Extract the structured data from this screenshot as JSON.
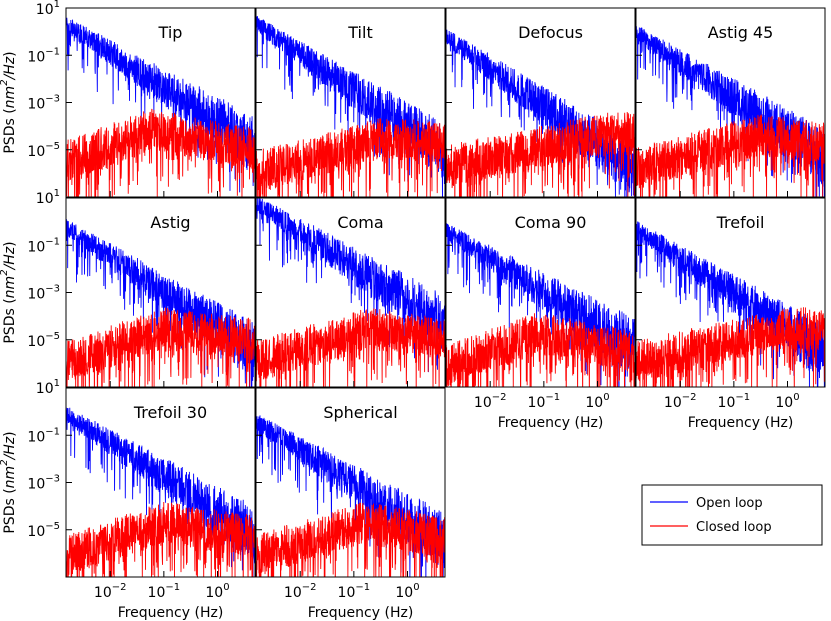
{
  "chart_data": {
    "type": "line",
    "scale": "log-log",
    "xlabel": "Frequency (Hz)",
    "ylabel": "PSDs (nm²/Hz)",
    "ylim": [
      1e-07,
      10
    ],
    "xlim": [
      0.0015,
      5
    ],
    "xticks": [
      0.01,
      0.1,
      1
    ],
    "yticks": [
      10,
      0.1,
      0.001,
      1e-05
    ],
    "ytick_labels": [
      {
        "base": "10",
        "exp": "1"
      },
      {
        "base": "10",
        "exp": "−1"
      },
      {
        "base": "10",
        "exp": "−3"
      },
      {
        "base": "10",
        "exp": "−5"
      }
    ],
    "xtick_labels": [
      {
        "base": "10",
        "exp": "−2"
      },
      {
        "base": "10",
        "exp": "−1"
      },
      {
        "base": "10",
        "exp": "0"
      }
    ],
    "legend": {
      "position": "lower-right",
      "entries": [
        {
          "label": "Open loop",
          "color": "#0000ff"
        },
        {
          "label": "Closed loop",
          "color": "#ff0000"
        }
      ]
    },
    "series_names": [
      "Open loop",
      "Closed loop"
    ],
    "panels": [
      {
        "title": "Tip",
        "open_start": 2.0,
        "open_slope": 1.45,
        "closed_peak": 8e-05,
        "closed_peak_freq": 0.06,
        "closed_end": 1e-05
      },
      {
        "title": "Tilt",
        "open_start": 2.2,
        "open_slope": 1.55,
        "closed_peak": 3e-05,
        "closed_peak_freq": 0.3,
        "closed_end": 2e-05
      },
      {
        "title": "Defocus",
        "open_start": 0.6,
        "open_slope": 1.6,
        "closed_peak": 5e-05,
        "closed_peak_freq": 1.5,
        "closed_end": 5e-05
      },
      {
        "title": "Astig 45",
        "open_start": 0.9,
        "open_slope": 1.5,
        "closed_peak": 4e-05,
        "closed_peak_freq": 0.3,
        "closed_end": 2e-05
      },
      {
        "title": "Astig",
        "open_start": 0.6,
        "open_slope": 1.5,
        "closed_peak": 3e-05,
        "closed_peak_freq": 0.1,
        "closed_end": 1e-05
      },
      {
        "title": "Coma",
        "open_start": 6.0,
        "open_slope": 1.45,
        "closed_peak": 3e-05,
        "closed_peak_freq": 0.2,
        "closed_end": 1e-05
      },
      {
        "title": "Coma 90",
        "open_start": 0.4,
        "open_slope": 1.4,
        "closed_peak": 2e-05,
        "closed_peak_freq": 0.08,
        "closed_end": 3e-06
      },
      {
        "title": "Trefoil",
        "open_start": 0.5,
        "open_slope": 1.5,
        "closed_peak": 3e-05,
        "closed_peak_freq": 1.0,
        "closed_end": 3e-05
      },
      {
        "title": "Trefoil 30",
        "open_start": 0.8,
        "open_slope": 1.45,
        "closed_peak": 2e-05,
        "closed_peak_freq": 0.1,
        "closed_end": 5e-06
      },
      {
        "title": "Spherical",
        "open_start": 0.4,
        "open_slope": 1.45,
        "closed_peak": 2e-05,
        "closed_peak_freq": 0.15,
        "closed_end": 5e-06
      }
    ]
  }
}
